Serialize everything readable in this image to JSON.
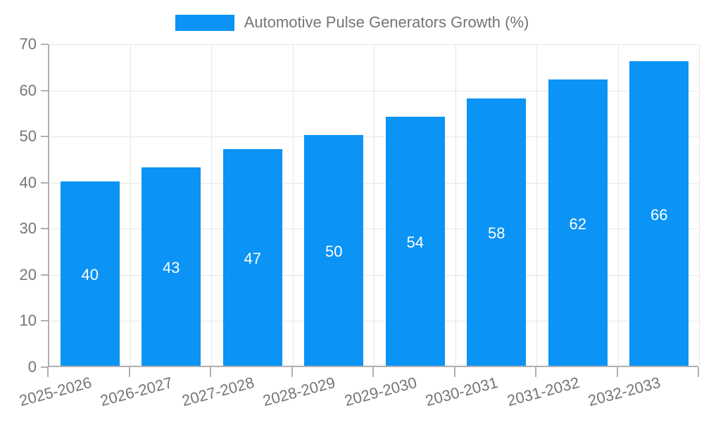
{
  "chart_data": {
    "type": "bar",
    "title": "Automotive Pulse Generators Growth (%)",
    "legend": {
      "position": "top-center",
      "entries": [
        "Automotive Pulse Generators Growth (%)"
      ]
    },
    "categories": [
      "2025-2026",
      "2026-2027",
      "2027-2028",
      "2028-2029",
      "2029-2030",
      "2030-2031",
      "2031-2032",
      "2032-2033"
    ],
    "values": [
      40,
      43,
      47,
      50,
      54,
      58,
      62,
      66
    ],
    "bar_value_labels": [
      "40",
      "43",
      "47",
      "50",
      "54",
      "58",
      "62",
      "66"
    ],
    "xlabel": "",
    "ylabel": "",
    "ylim": [
      0,
      70
    ],
    "yticks": [
      0,
      10,
      20,
      30,
      40,
      50,
      60,
      70
    ],
    "grid": "both",
    "x_tick_label_rotation_deg": -15,
    "colors": {
      "bar": "#0b93f5",
      "bar_value_label": "#ffffff",
      "axis_text": "#757575",
      "grid_line": "#e6e6e6",
      "axis_line": "#b0b0b0",
      "background": "#ffffff"
    }
  }
}
